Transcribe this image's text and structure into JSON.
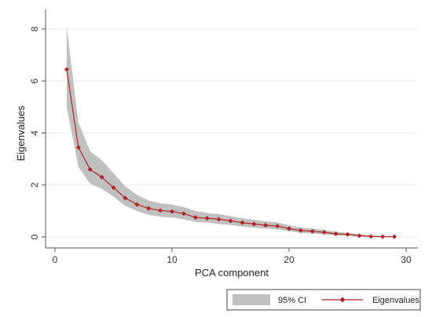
{
  "chart_data": {
    "type": "line",
    "xlabel": "PCA component",
    "ylabel": "Eigenvalues",
    "xlim": [
      0,
      30
    ],
    "ylim": [
      0,
      8
    ],
    "x_ticks": [
      0,
      10,
      20,
      30
    ],
    "y_ticks": [
      0,
      2,
      4,
      6,
      8
    ],
    "grid": "horizontal",
    "legend_position": "bottom-right",
    "series": [
      {
        "name": "Eigenvalues",
        "type": "line",
        "color": "#b22222",
        "x": [
          1,
          2,
          3,
          4,
          5,
          6,
          7,
          8,
          9,
          10,
          11,
          12,
          13,
          14,
          15,
          16,
          17,
          18,
          19,
          20,
          21,
          22,
          23,
          24,
          25,
          26,
          27,
          28,
          29
        ],
        "values": [
          6.45,
          3.45,
          2.6,
          2.3,
          1.9,
          1.5,
          1.25,
          1.1,
          1.02,
          0.98,
          0.9,
          0.75,
          0.72,
          0.68,
          0.62,
          0.55,
          0.5,
          0.45,
          0.42,
          0.32,
          0.25,
          0.22,
          0.18,
          0.12,
          0.1,
          0.05,
          0.02,
          0.01,
          0.01
        ]
      },
      {
        "name": "95% CI",
        "type": "area",
        "color": "#c0c0c0",
        "x": [
          1,
          2,
          3,
          4,
          5,
          6,
          7,
          8,
          9,
          10,
          11,
          12,
          13,
          14,
          15,
          16,
          17,
          18,
          19,
          20,
          21,
          22,
          23,
          24,
          25,
          26,
          27,
          28,
          29
        ],
        "lower": [
          5.0,
          2.7,
          2.05,
          1.85,
          1.55,
          1.2,
          1.0,
          0.85,
          0.78,
          0.75,
          0.68,
          0.58,
          0.55,
          0.5,
          0.46,
          0.4,
          0.36,
          0.32,
          0.3,
          0.22,
          0.16,
          0.13,
          0.1,
          0.06,
          0.05,
          0.02,
          0.0,
          0.0,
          0.0
        ],
        "upper": [
          8.1,
          4.4,
          3.3,
          2.95,
          2.45,
          1.95,
          1.62,
          1.4,
          1.3,
          1.25,
          1.15,
          1.0,
          0.92,
          0.88,
          0.8,
          0.72,
          0.66,
          0.6,
          0.56,
          0.45,
          0.36,
          0.32,
          0.27,
          0.2,
          0.16,
          0.1,
          0.06,
          0.04,
          0.03
        ]
      }
    ],
    "legend": [
      {
        "label": "95% CI",
        "kind": "area",
        "color": "#c0c0c0"
      },
      {
        "label": "Eigenvalues",
        "kind": "line-marker",
        "color": "#b22222"
      }
    ]
  }
}
